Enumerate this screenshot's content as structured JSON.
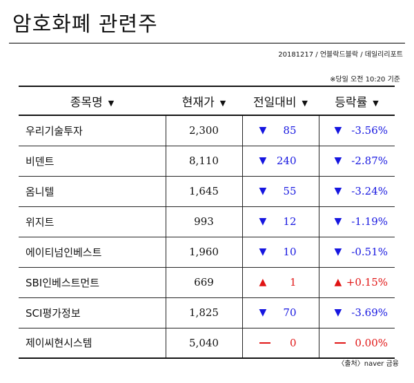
{
  "title": "암호화폐 관련주",
  "meta": "20181217 / 언블락드블락 / 데일리리포트",
  "timestamp": "※당일 오전 10:20 기준",
  "columns": {
    "name": "종목명",
    "price": "현재가",
    "change": "전일대비",
    "rate": "등락률"
  },
  "rows": [
    {
      "name": "우리기술투자",
      "price": "2,300",
      "direction": "down",
      "change": "85",
      "rate": "-3.56%"
    },
    {
      "name": "비덴트",
      "price": "8,110",
      "direction": "down",
      "change": "240",
      "rate": "-2.87%"
    },
    {
      "name": "옴니텔",
      "price": "1,645",
      "direction": "down",
      "change": "55",
      "rate": "-3.24%"
    },
    {
      "name": "위지트",
      "price": "993",
      "direction": "down",
      "change": "12",
      "rate": "-1.19%"
    },
    {
      "name": "에이티넘인베스트",
      "price": "1,960",
      "direction": "down",
      "change": "10",
      "rate": "-0.51%"
    },
    {
      "name": "SBI인베스트먼트",
      "price": "669",
      "direction": "up",
      "change": "1",
      "rate": "+0.15%"
    },
    {
      "name": "SCI평가정보",
      "price": "1,825",
      "direction": "down",
      "change": "70",
      "rate": "-3.69%"
    },
    {
      "name": "제이씨현시스템",
      "price": "5,040",
      "direction": "flat",
      "change": "0",
      "rate": "0.00%"
    }
  ],
  "source": "〈출처〉naver 금융",
  "colors": {
    "down": "#1616e0",
    "up": "#e01414",
    "flat": "#e01414"
  },
  "icons": {
    "sort": "sort-down-icon",
    "down": "down-triangle-icon",
    "up": "up-triangle-icon",
    "flat": "dash-icon"
  }
}
